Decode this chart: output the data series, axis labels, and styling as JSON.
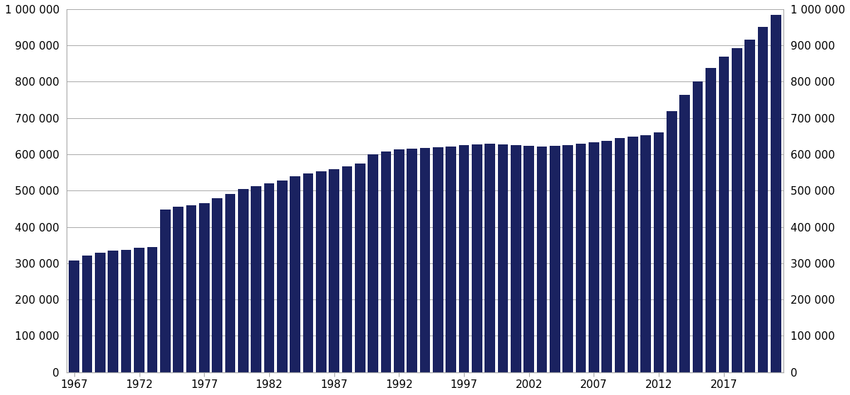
{
  "years": [
    1967,
    1968,
    1969,
    1970,
    1971,
    1972,
    1973,
    1974,
    1975,
    1976,
    1977,
    1978,
    1979,
    1980,
    1981,
    1982,
    1983,
    1984,
    1985,
    1986,
    1987,
    1988,
    1989,
    1990,
    1991,
    1992,
    1993,
    1994,
    1995,
    1996,
    1997,
    1998,
    1999,
    2000,
    2001,
    2002,
    2003,
    2004,
    2005,
    2006,
    2007,
    2008,
    2009,
    2010,
    2011,
    2012,
    2013,
    2014,
    2015,
    2016,
    2017,
    2018,
    2019,
    2020,
    2021
  ],
  "values": [
    307000,
    322000,
    328000,
    335000,
    337000,
    342000,
    345000,
    448000,
    455000,
    460000,
    465000,
    480000,
    490000,
    505000,
    513000,
    520000,
    527000,
    540000,
    548000,
    553000,
    560000,
    567000,
    575000,
    600000,
    607000,
    613000,
    615000,
    617000,
    620000,
    622000,
    625000,
    628000,
    629000,
    628000,
    626000,
    624000,
    622000,
    623000,
    625000,
    630000,
    633000,
    638000,
    644000,
    648000,
    653000,
    660000,
    719000,
    763000,
    800000,
    838000,
    869000,
    893000,
    916000,
    951000,
    985000
  ],
  "bar_color": "#1a2260",
  "ylim": [
    0,
    1000000
  ],
  "yticks": [
    0,
    100000,
    200000,
    300000,
    400000,
    500000,
    600000,
    700000,
    800000,
    900000,
    1000000
  ],
  "ytick_labels": [
    "0",
    "100 000",
    "200 000",
    "300 000",
    "400 000",
    "500 000",
    "600 000",
    "700 000",
    "800 000",
    "900 000",
    "1 000 000"
  ],
  "xticks": [
    1967,
    1972,
    1977,
    1982,
    1987,
    1992,
    1997,
    2002,
    2007,
    2012,
    2017
  ],
  "grid_color": "#aaaaaa",
  "background_color": "#ffffff"
}
